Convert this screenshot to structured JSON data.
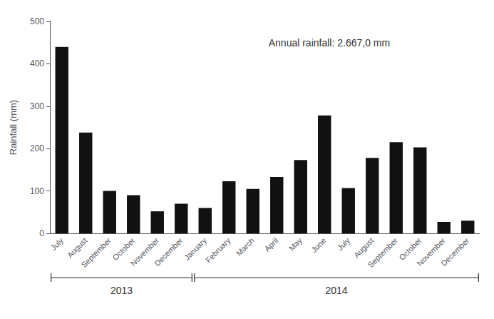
{
  "chart_data": {
    "type": "bar",
    "ylabel": "Rainfall (mm)",
    "categories": [
      "July",
      "August",
      "September",
      "October",
      "November",
      "December",
      "January",
      "February",
      "March",
      "April",
      "May",
      "June",
      "July",
      "August",
      "September",
      "October",
      "November",
      "December"
    ],
    "category_groups": [
      "2013",
      "2013",
      "2013",
      "2013",
      "2013",
      "2013",
      "2014",
      "2014",
      "2014",
      "2014",
      "2014",
      "2014",
      "2014",
      "2014",
      "2014",
      "2014",
      "2014",
      "2014"
    ],
    "values": [
      440,
      238,
      100,
      90,
      52,
      70,
      60,
      123,
      105,
      133,
      173,
      278,
      107,
      178,
      215,
      203,
      27,
      30
    ],
    "color": "#111111",
    "ylim": [
      0,
      500
    ],
    "yticks": [
      0,
      100,
      200,
      300,
      400,
      500
    ],
    "grid": false,
    "annotation": "Annual rainfall: 2.667,0 mm"
  }
}
